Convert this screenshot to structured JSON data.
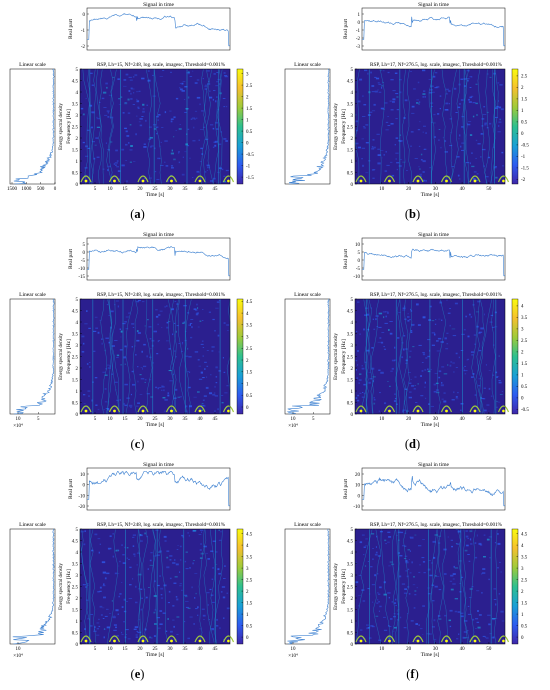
{
  "figure": {
    "panels": [
      {
        "id": "a",
        "caption": "a",
        "signal_title": "Signal in time",
        "signal_ylabel": "Real part",
        "signal_yticks": [
          "0",
          "-1",
          "-2"
        ],
        "psd_title": "Linear scale",
        "psd_ylabel": "Energy spectral density",
        "psd_xticks": [
          "1500",
          "1000",
          "500",
          "0"
        ],
        "psd_exponent": "",
        "tf_title": "RSP, Lh=15, Nf=248, log. scale, imagesc, Threshold=0.001%",
        "tf_ylabel": "Frequency [Hz]",
        "tf_xlabel": "Time [s]",
        "tf_xticks": [
          "5",
          "10",
          "15",
          "20",
          "25",
          "30",
          "35",
          "40",
          "45"
        ],
        "tf_yticks": [
          "0",
          "0.5",
          "1",
          "1.5",
          "2",
          "2.5",
          "3",
          "3.5",
          "4",
          "4.5",
          "5"
        ],
        "colorbar_ticks": [
          "3",
          "2.5",
          "2",
          "1.5",
          "1",
          "0.5",
          "0",
          "-0.5",
          "-1",
          "-1.5"
        ]
      },
      {
        "id": "b",
        "caption": "b",
        "signal_title": "Signal in time",
        "signal_ylabel": "Real part",
        "signal_yticks": [
          "1",
          "0",
          "-1",
          "-2",
          "-3"
        ],
        "psd_title": "Linear scale",
        "psd_ylabel": "Energy spectral density",
        "psd_xticks": [],
        "psd_exponent": "",
        "tf_title": "RSP, Lh=17, Nf=276.5, log. scale, imagesc, Threshold=0.001%",
        "tf_ylabel": "Frequency [Hz]",
        "tf_xlabel": "Time [s]",
        "tf_xticks": [
          "10",
          "20",
          "30",
          "40",
          "50"
        ],
        "tf_yticks": [
          "0",
          "0.5",
          "1",
          "1.5",
          "2",
          "2.5",
          "3",
          "3.5",
          "4",
          "4.5",
          "5"
        ],
        "colorbar_ticks": [
          "2.5",
          "2",
          "1.5",
          "1",
          "0.5",
          "0",
          "-0.5",
          "-1",
          "-1.5",
          "-2"
        ]
      },
      {
        "id": "c",
        "caption": "c",
        "signal_title": "Signal in time",
        "signal_ylabel": "Real part",
        "signal_yticks": [
          "5",
          "0",
          "-5",
          "-10",
          "-15"
        ],
        "psd_title": "Linear scale",
        "psd_ylabel": "Energy spectral density",
        "psd_xticks": [
          "10",
          "5"
        ],
        "psd_exponent": "×10⁴",
        "tf_title": "RSP, Lh=15, Nf=248, log. scale, imagesc, Threshold=0.001%",
        "tf_ylabel": "Frequency [Hz]",
        "tf_xlabel": "Time [s]",
        "tf_xticks": [
          "5",
          "10",
          "15",
          "20",
          "25",
          "30",
          "35",
          "40",
          "45"
        ],
        "tf_yticks": [
          "0",
          "0.5",
          "1",
          "1.5",
          "2",
          "2.5",
          "3",
          "3.5",
          "4",
          "4.5",
          "5"
        ],
        "colorbar_ticks": [
          "4.5",
          "4",
          "3.5",
          "3",
          "2.5",
          "2",
          "1.5",
          "1",
          "0.5",
          "0"
        ]
      },
      {
        "id": "d",
        "caption": "d",
        "signal_title": "Signal in time",
        "signal_ylabel": "Real part",
        "signal_yticks": [
          "10",
          "5",
          "0",
          "-5",
          "-10"
        ],
        "psd_title": "Linear scale",
        "psd_ylabel": "Energy spectral density",
        "psd_xticks": [
          "10",
          "5"
        ],
        "psd_exponent": "×10⁴",
        "tf_title": "RSP, Lh=17, Nf=276.5, log. scale, imagesc, Threshold=0.001%",
        "tf_ylabel": "Frequency [Hz]",
        "tf_xlabel": "Time [s]",
        "tf_xticks": [
          "10",
          "20",
          "30",
          "40",
          "50"
        ],
        "tf_yticks": [
          "0",
          "0.5",
          "1",
          "1.5",
          "2",
          "2.5",
          "3",
          "3.5",
          "4",
          "4.5",
          "5"
        ],
        "colorbar_ticks": [
          "4",
          "3.5",
          "3",
          "2.5",
          "2",
          "1.5",
          "1",
          "0.5",
          "0",
          "-0.5"
        ]
      },
      {
        "id": "e",
        "caption": "e",
        "signal_title": "Signal in time",
        "signal_ylabel": "Real part",
        "signal_yticks": [
          "10",
          "0",
          "-10",
          "-20"
        ],
        "psd_title": "Linear scale",
        "psd_ylabel": "Energy spectral density",
        "psd_xticks": [
          "10"
        ],
        "psd_exponent": "×10⁴",
        "tf_title": "RSP, Lh=15, Nf=248, log. scale, imagesc, Threshold=0.001%",
        "tf_ylabel": "Frequency [Hz]",
        "tf_xlabel": "Time [s]",
        "tf_xticks": [
          "5",
          "10",
          "15",
          "20",
          "25",
          "30",
          "35",
          "40",
          "45"
        ],
        "tf_yticks": [
          "0",
          "0.5",
          "1",
          "1.5",
          "2",
          "2.5",
          "3",
          "3.5",
          "4",
          "4.5",
          "5"
        ],
        "colorbar_ticks": [
          "4.5",
          "4",
          "3.5",
          "3",
          "2.5",
          "2",
          "1.5",
          "1",
          "0.5",
          "0"
        ]
      },
      {
        "id": "f",
        "caption": "f",
        "signal_title": "Signal in time",
        "signal_ylabel": "Real part",
        "signal_yticks": [
          "20",
          "10",
          "0",
          "-10"
        ],
        "psd_title": "Linear scale",
        "psd_ylabel": "Energy spectral density",
        "psd_xticks": [
          "10"
        ],
        "psd_exponent": "×10⁴",
        "tf_title": "RSP, Lh=17, Nf=276.5, log. scale, imagesc, Threshold=0.001%",
        "tf_ylabel": "Frequency [Hz]",
        "tf_xlabel": "Time [s]",
        "tf_xticks": [
          "10",
          "20",
          "30",
          "40",
          "50"
        ],
        "tf_yticks": [
          "0",
          "0.5",
          "1",
          "1.5",
          "2",
          "2.5",
          "3",
          "3.5",
          "4",
          "4.5",
          "5"
        ],
        "colorbar_ticks": [
          "4.5",
          "4",
          "3.5",
          "3",
          "2.5",
          "2",
          "1.5",
          "1",
          "0.5",
          "0"
        ]
      }
    ],
    "colors": {
      "line": "#3a7fd0",
      "tf_background": "#2b1f8f",
      "colormap": [
        "#3e26a8",
        "#2e5cf0",
        "#1aa0d6",
        "#2ec08f",
        "#9fcb3b",
        "#f5c02f",
        "#f9fb0e"
      ]
    }
  },
  "chart_data": [
    {
      "type": "heatmap",
      "panel": "a",
      "title": "RSP, Lh=15, Nf=248, log. scale, imagesc, Threshold=0.001%",
      "xlabel": "Time [s]",
      "ylabel": "Frequency [Hz]",
      "xlim": [
        0,
        50
      ],
      "ylim": [
        0,
        5
      ],
      "clim": [
        -1.8,
        3.2
      ]
    },
    {
      "type": "heatmap",
      "panel": "b",
      "title": "RSP, Lh=17, Nf=276.5, log. scale, imagesc, Threshold=0.001%",
      "xlabel": "Time [s]",
      "ylabel": "Frequency [Hz]",
      "xlim": [
        0,
        56
      ],
      "ylim": [
        0,
        5
      ],
      "clim": [
        -2.2,
        2.8
      ]
    },
    {
      "type": "heatmap",
      "panel": "c",
      "title": "RSP, Lh=15, Nf=248, log. scale, imagesc, Threshold=0.001%",
      "xlabel": "Time [s]",
      "ylabel": "Frequency [Hz]",
      "xlim": [
        0,
        50
      ],
      "ylim": [
        0,
        5
      ],
      "clim": [
        -0.3,
        4.6
      ]
    },
    {
      "type": "heatmap",
      "panel": "d",
      "title": "RSP, Lh=17, Nf=276.5, log. scale, imagesc, Threshold=0.001%",
      "xlabel": "Time [s]",
      "ylabel": "Frequency [Hz]",
      "xlim": [
        0,
        56
      ],
      "ylim": [
        0,
        5
      ],
      "clim": [
        -0.7,
        4.3
      ]
    },
    {
      "type": "heatmap",
      "panel": "e",
      "title": "RSP, Lh=15, Nf=248, log. scale, imagesc, Threshold=0.001%",
      "xlabel": "Time [s]",
      "ylabel": "Frequency [Hz]",
      "xlim": [
        0,
        50
      ],
      "ylim": [
        0,
        5
      ],
      "clim": [
        -0.3,
        4.7
      ]
    },
    {
      "type": "heatmap",
      "panel": "f",
      "title": "RSP, Lh=17, Nf=276.5, log. scale, imagesc, Threshold=0.001%",
      "xlabel": "Time [s]",
      "ylabel": "Frequency [Hz]",
      "xlim": [
        0,
        56
      ],
      "ylim": [
        0,
        5
      ],
      "clim": [
        -0.3,
        4.7
      ]
    }
  ]
}
